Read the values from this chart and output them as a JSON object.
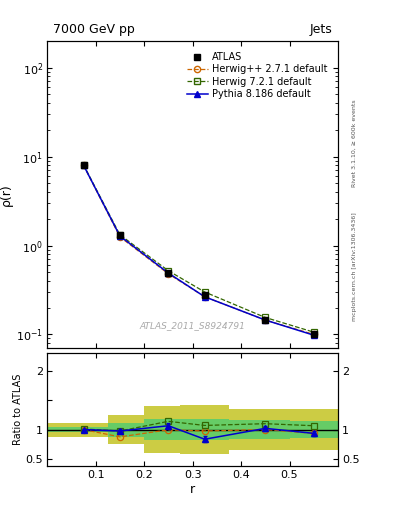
{
  "title": "7000 GeV pp",
  "title_right": "Jets",
  "xlabel": "r",
  "ylabel_main": "ρ(r)",
  "ylabel_ratio": "Ratio to ATLAS",
  "watermark": "ATLAS_2011_S8924791",
  "rivet_label": "Rivet 3.1.10, ≥ 600k events",
  "arxiv_label": "mcplots.cern.ch [arXiv:1306.3436]",
  "r_values": [
    0.075,
    0.15,
    0.25,
    0.325,
    0.45,
    0.55
  ],
  "atlas_y": [
    8.0,
    1.3,
    0.49,
    0.28,
    0.145,
    0.1
  ],
  "atlas_yerr": [
    0.05,
    0.04,
    0.015,
    0.012,
    0.008,
    0.006
  ],
  "herwig_orange_y": [
    8.0,
    1.25,
    0.48,
    0.265,
    0.145,
    0.1
  ],
  "herwig_green_y": [
    8.1,
    1.32,
    0.52,
    0.3,
    0.155,
    0.106
  ],
  "pythia_y": [
    8.0,
    1.28,
    0.49,
    0.265,
    0.145,
    0.098
  ],
  "ratio_atlas_err_green": [
    0.05,
    0.12,
    0.18,
    0.18,
    0.16,
    0.15
  ],
  "ratio_atlas_err_yellow": [
    0.12,
    0.25,
    0.4,
    0.42,
    0.35,
    0.35
  ],
  "ratio_herwig_orange": [
    1.0,
    0.875,
    0.995,
    0.975,
    1.0,
    0.935
  ],
  "ratio_herwig_green": [
    1.01,
    0.975,
    1.14,
    1.07,
    1.1,
    1.065
  ],
  "ratio_pythia": [
    1.0,
    0.975,
    1.065,
    0.835,
    1.02,
    0.935
  ],
  "ratio_pythia_err": [
    0.01,
    0.035,
    0.04,
    0.055,
    0.04,
    0.04
  ],
  "bin_edges": [
    0.0,
    0.125,
    0.2,
    0.275,
    0.375,
    0.5,
    0.6
  ],
  "color_atlas": "#000000",
  "color_herwig_orange": "#cc6600",
  "color_herwig_green": "#336600",
  "color_pythia": "#0000cc",
  "color_band_green": "#66cc66",
  "color_band_yellow": "#cccc44",
  "legend_labels": [
    "ATLAS",
    "Herwig++ 2.7.1 default",
    "Herwig 7.2.1 default",
    "Pythia 8.186 default"
  ],
  "ylim_main": [
    0.07,
    200
  ],
  "ylim_ratio": [
    0.38,
    2.3
  ],
  "xlim": [
    0.0,
    0.6
  ]
}
